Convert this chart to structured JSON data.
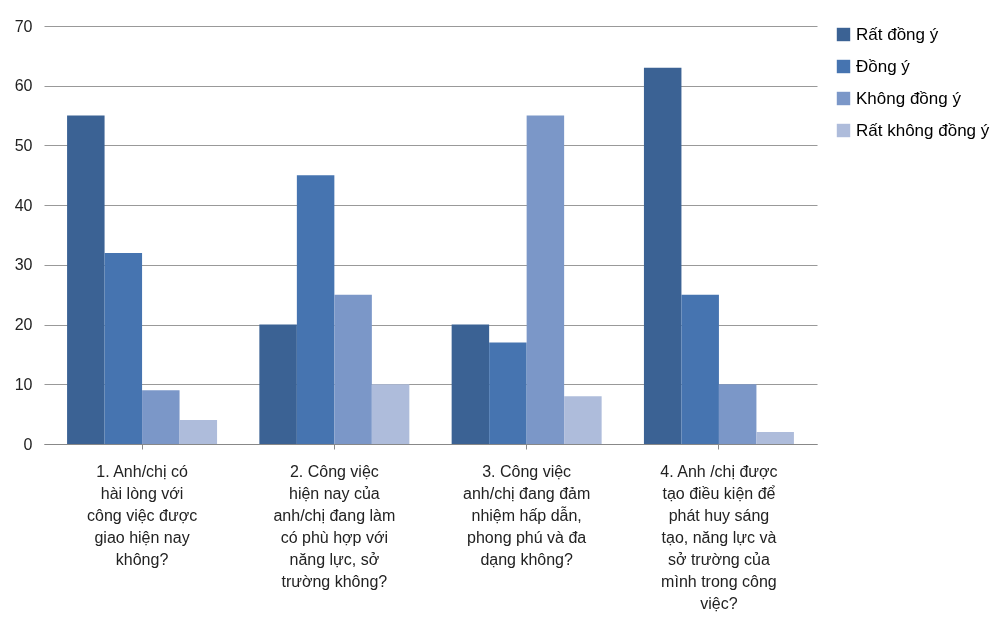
{
  "chart_data": {
    "type": "bar",
    "categories": [
      "1. Anh/chị có hài lòng với công việc được giao hiện nay không?",
      "2. Công việc hiện nay của anh/chị đang làm có phù hợp với năng lực, sở trường không?",
      "3. Công việc anh/chị đang đảm nhiệm hấp dẫn, phong phú và đa dạng không?",
      "4. Anh /chị được tạo điều kiện để phát huy sáng tạo, năng lực và sở trường của mình trong công việc?"
    ],
    "series": [
      {
        "name": "Rất đồng ý",
        "color": "#3b6294",
        "values": [
          55,
          20,
          20,
          63
        ]
      },
      {
        "name": "Đồng ý",
        "color": "#4674b0",
        "values": [
          32,
          45,
          17,
          25
        ]
      },
      {
        "name": "Không đồng ý",
        "color": "#7b97c8",
        "values": [
          9,
          25,
          55,
          10
        ]
      },
      {
        "name": "Rất không đồng ý",
        "color": "#aebcdb",
        "values": [
          4,
          10,
          8,
          2
        ]
      }
    ],
    "ylim": [
      0,
      70
    ],
    "yticks": [
      0,
      10,
      20,
      30,
      40,
      50,
      60,
      70
    ],
    "grid": "y",
    "legend": "right"
  }
}
